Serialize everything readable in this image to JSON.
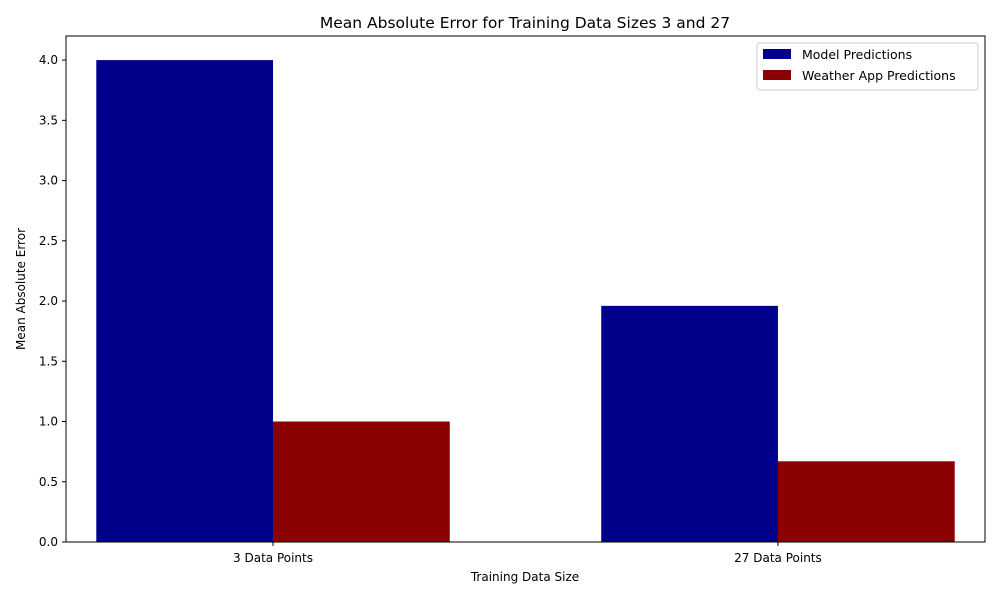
{
  "chart_data": {
    "type": "bar",
    "title": "Mean Absolute Error for Training Data Sizes 3 and 27",
    "xlabel": "Training Data Size",
    "ylabel": "Mean Absolute Error",
    "categories": [
      "3 Data Points",
      "27 Data Points"
    ],
    "series": [
      {
        "name": "Model Predictions",
        "color": "#00008b",
        "values": [
          4.0,
          1.96
        ]
      },
      {
        "name": "Weather App Predictions",
        "color": "#8b0000",
        "values": [
          1.0,
          0.67
        ]
      }
    ],
    "ylim": [
      0,
      4.2
    ],
    "yticks": [
      "0.0",
      "0.5",
      "1.0",
      "1.5",
      "2.0",
      "2.5",
      "3.0",
      "3.5",
      "4.0"
    ],
    "grid": false,
    "legend_position": "top-right"
  }
}
